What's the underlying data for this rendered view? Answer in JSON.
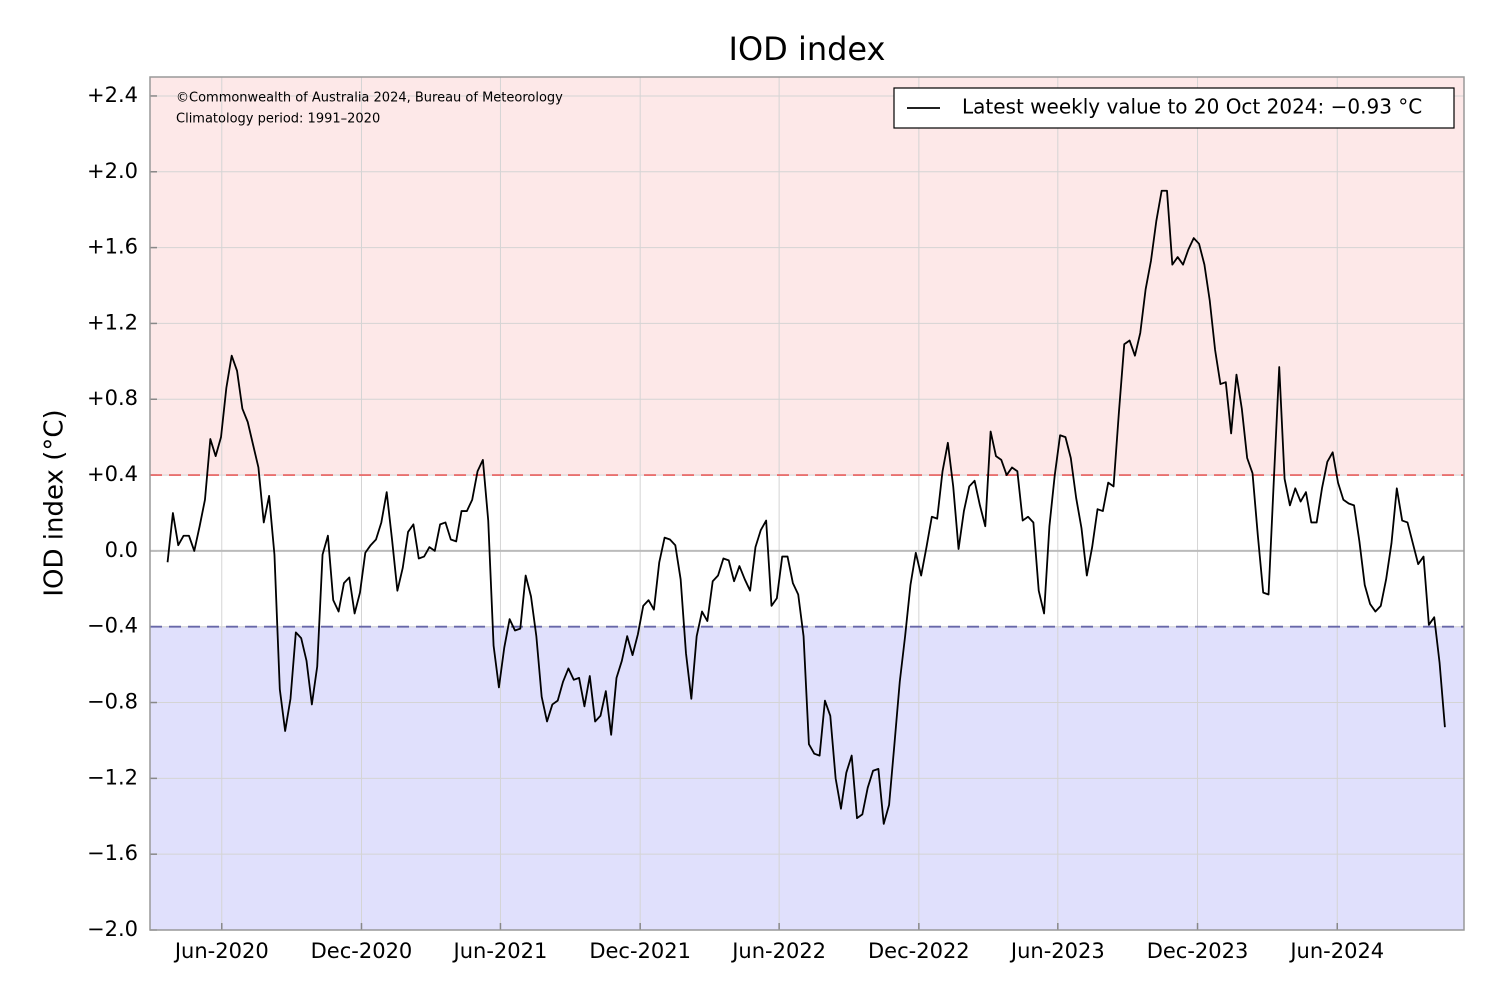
{
  "chart_data": {
    "type": "line",
    "title": "IOD index",
    "y_label": "IOD index (°C)",
    "annotations": [
      "©Commonwealth of Australia 2024, Bureau of Meteorology",
      "Climatology period: 1991–2020"
    ],
    "x": [
      "2020-03-22",
      "2020-03-29",
      "2020-04-05",
      "2020-04-12",
      "2020-04-19",
      "2020-04-26",
      "2020-05-03",
      "2020-05-10",
      "2020-05-17",
      "2020-05-24",
      "2020-05-31",
      "2020-06-07",
      "2020-06-14",
      "2020-06-21",
      "2020-06-28",
      "2020-07-05",
      "2020-07-12",
      "2020-07-19",
      "2020-07-26",
      "2020-08-02",
      "2020-08-09",
      "2020-08-16",
      "2020-08-23",
      "2020-08-30",
      "2020-09-06",
      "2020-09-13",
      "2020-09-20",
      "2020-09-27",
      "2020-10-04",
      "2020-10-11",
      "2020-10-18",
      "2020-10-25",
      "2020-11-01",
      "2020-11-08",
      "2020-11-15",
      "2020-11-22",
      "2020-11-29",
      "2020-12-06",
      "2020-12-13",
      "2020-12-20",
      "2020-12-27",
      "2021-01-03",
      "2021-01-10",
      "2021-01-17",
      "2021-01-24",
      "2021-01-31",
      "2021-02-07",
      "2021-02-14",
      "2021-02-21",
      "2021-02-28",
      "2021-03-07",
      "2021-03-14",
      "2021-03-21",
      "2021-03-28",
      "2021-04-04",
      "2021-04-11",
      "2021-04-18",
      "2021-04-25",
      "2021-05-02",
      "2021-05-09",
      "2021-05-16",
      "2021-05-23",
      "2021-05-30",
      "2021-06-06",
      "2021-06-13",
      "2021-06-20",
      "2021-06-27",
      "2021-07-04",
      "2021-07-11",
      "2021-07-18",
      "2021-07-25",
      "2021-08-01",
      "2021-08-08",
      "2021-08-15",
      "2021-08-22",
      "2021-08-29",
      "2021-09-05",
      "2021-09-12",
      "2021-09-19",
      "2021-09-26",
      "2021-10-03",
      "2021-10-10",
      "2021-10-17",
      "2021-10-24",
      "2021-10-31",
      "2021-11-07",
      "2021-11-14",
      "2021-11-21",
      "2021-11-28",
      "2021-12-05",
      "2021-12-12",
      "2021-12-19",
      "2021-12-26",
      "2022-01-02",
      "2022-01-09",
      "2022-01-16",
      "2022-01-23",
      "2022-01-30",
      "2022-02-06",
      "2022-02-13",
      "2022-02-20",
      "2022-02-27",
      "2022-03-06",
      "2022-03-13",
      "2022-03-20",
      "2022-03-27",
      "2022-04-03",
      "2022-04-10",
      "2022-04-17",
      "2022-04-24",
      "2022-05-01",
      "2022-05-08",
      "2022-05-15",
      "2022-05-22",
      "2022-05-29",
      "2022-06-05",
      "2022-06-12",
      "2022-06-19",
      "2022-06-26",
      "2022-07-03",
      "2022-07-10",
      "2022-07-17",
      "2022-07-24",
      "2022-07-31",
      "2022-08-07",
      "2022-08-14",
      "2022-08-21",
      "2022-08-28",
      "2022-09-04",
      "2022-09-11",
      "2022-09-18",
      "2022-09-25",
      "2022-10-02",
      "2022-10-09",
      "2022-10-16",
      "2022-10-23",
      "2022-10-30",
      "2022-11-06",
      "2022-11-13",
      "2022-11-20",
      "2022-11-27",
      "2022-12-04",
      "2022-12-11",
      "2022-12-18",
      "2022-12-25",
      "2023-01-01",
      "2023-01-08",
      "2023-01-15",
      "2023-01-22",
      "2023-01-29",
      "2023-02-05",
      "2023-02-12",
      "2023-02-19",
      "2023-02-26",
      "2023-03-05",
      "2023-03-12",
      "2023-03-19",
      "2023-03-26",
      "2023-04-02",
      "2023-04-09",
      "2023-04-16",
      "2023-04-23",
      "2023-04-30",
      "2023-05-07",
      "2023-05-14",
      "2023-05-21",
      "2023-05-28",
      "2023-06-04",
      "2023-06-11",
      "2023-06-18",
      "2023-06-25",
      "2023-07-02",
      "2023-07-09",
      "2023-07-16",
      "2023-07-23",
      "2023-07-30",
      "2023-08-06",
      "2023-08-13",
      "2023-08-20",
      "2023-08-27",
      "2023-09-03",
      "2023-09-10",
      "2023-09-17",
      "2023-09-24",
      "2023-10-01",
      "2023-10-08",
      "2023-10-15",
      "2023-10-22",
      "2023-10-29",
      "2023-11-05",
      "2023-11-12",
      "2023-11-19",
      "2023-11-26",
      "2023-12-03",
      "2023-12-10",
      "2023-12-17",
      "2023-12-24",
      "2023-12-31",
      "2024-01-07",
      "2024-01-14",
      "2024-01-21",
      "2024-01-28",
      "2024-02-04",
      "2024-02-11",
      "2024-02-18",
      "2024-02-25",
      "2024-03-03",
      "2024-03-10",
      "2024-03-17",
      "2024-03-24",
      "2024-03-31",
      "2024-04-07",
      "2024-04-14",
      "2024-04-21",
      "2024-04-28",
      "2024-05-05",
      "2024-05-12",
      "2024-05-19",
      "2024-05-26",
      "2024-06-02",
      "2024-06-09",
      "2024-06-16",
      "2024-06-23",
      "2024-06-30",
      "2024-07-07",
      "2024-07-14",
      "2024-07-21",
      "2024-07-28",
      "2024-08-04",
      "2024-08-11",
      "2024-08-18",
      "2024-08-25",
      "2024-09-01",
      "2024-09-08",
      "2024-09-15",
      "2024-09-22",
      "2024-09-29",
      "2024-10-06",
      "2024-10-13",
      "2024-10-20"
    ],
    "series": [
      {
        "name": "Latest weekly value to 20 Oct 2024: −0.93 °C",
        "color": "#000000",
        "values": [
          -0.06,
          0.2,
          0.03,
          0.08,
          0.08,
          0.0,
          0.13,
          0.27,
          0.59,
          0.5,
          0.6,
          0.86,
          1.03,
          0.95,
          0.75,
          0.68,
          0.56,
          0.44,
          0.15,
          0.29,
          -0.02,
          -0.73,
          -0.95,
          -0.78,
          -0.43,
          -0.46,
          -0.58,
          -0.81,
          -0.61,
          -0.02,
          0.08,
          -0.26,
          -0.32,
          -0.17,
          -0.14,
          -0.33,
          -0.22,
          -0.01,
          0.03,
          0.06,
          0.15,
          0.31,
          0.06,
          -0.21,
          -0.09,
          0.1,
          0.14,
          -0.04,
          -0.03,
          0.02,
          0.0,
          0.14,
          0.15,
          0.06,
          0.05,
          0.21,
          0.21,
          0.27,
          0.42,
          0.48,
          0.16,
          -0.5,
          -0.72,
          -0.51,
          -0.36,
          -0.42,
          -0.41,
          -0.13,
          -0.24,
          -0.45,
          -0.77,
          -0.9,
          -0.81,
          -0.79,
          -0.69,
          -0.62,
          -0.68,
          -0.67,
          -0.82,
          -0.66,
          -0.9,
          -0.87,
          -0.74,
          -0.97,
          -0.67,
          -0.58,
          -0.45,
          -0.55,
          -0.44,
          -0.29,
          -0.26,
          -0.31,
          -0.06,
          0.07,
          0.06,
          0.03,
          -0.15,
          -0.54,
          -0.78,
          -0.45,
          -0.32,
          -0.37,
          -0.16,
          -0.13,
          -0.04,
          -0.05,
          -0.16,
          -0.08,
          -0.15,
          -0.21,
          0.02,
          0.11,
          0.16,
          -0.29,
          -0.25,
          -0.03,
          -0.03,
          -0.17,
          -0.23,
          -0.45,
          -1.02,
          -1.07,
          -1.08,
          -0.79,
          -0.87,
          -1.2,
          -1.36,
          -1.17,
          -1.08,
          -1.41,
          -1.39,
          -1.25,
          -1.16,
          -1.15,
          -1.44,
          -1.34,
          -1.02,
          -0.69,
          -0.45,
          -0.18,
          -0.01,
          -0.13,
          0.02,
          0.18,
          0.17,
          0.42,
          0.57,
          0.34,
          0.01,
          0.21,
          0.34,
          0.37,
          0.24,
          0.13,
          0.63,
          0.5,
          0.48,
          0.4,
          0.44,
          0.42,
          0.16,
          0.18,
          0.15,
          -0.21,
          -0.33,
          0.13,
          0.4,
          0.61,
          0.6,
          0.49,
          0.28,
          0.12,
          -0.13,
          0.02,
          0.22,
          0.21,
          0.36,
          0.34,
          0.73,
          1.09,
          1.11,
          1.03,
          1.15,
          1.38,
          1.53,
          1.74,
          1.9,
          1.9,
          1.51,
          1.55,
          1.51,
          1.59,
          1.65,
          1.62,
          1.51,
          1.32,
          1.06,
          0.88,
          0.89,
          0.62,
          0.93,
          0.75,
          0.49,
          0.41,
          0.08,
          -0.22,
          -0.23,
          0.38,
          0.97,
          0.38,
          0.24,
          0.33,
          0.26,
          0.31,
          0.15,
          0.15,
          0.33,
          0.47,
          0.52,
          0.36,
          0.27,
          0.25,
          0.24,
          0.05,
          -0.18,
          -0.28,
          -0.32,
          -0.29,
          -0.15,
          0.04,
          0.33,
          0.16,
          0.15,
          0.04,
          -0.07,
          -0.03,
          -0.39,
          -0.35,
          -0.59,
          -0.93
        ]
      }
    ],
    "xlim": [
      "2020-02-28",
      "2024-11-14"
    ],
    "xticks": [
      {
        "value": "2020-06-01",
        "label": "Jun-2020"
      },
      {
        "value": "2020-12-01",
        "label": "Dec-2020"
      },
      {
        "value": "2021-06-01",
        "label": "Jun-2021"
      },
      {
        "value": "2021-12-01",
        "label": "Dec-2021"
      },
      {
        "value": "2022-06-01",
        "label": "Jun-2022"
      },
      {
        "value": "2022-12-01",
        "label": "Dec-2022"
      },
      {
        "value": "2023-06-01",
        "label": "Jun-2023"
      },
      {
        "value": "2023-12-01",
        "label": "Dec-2023"
      },
      {
        "value": "2024-06-01",
        "label": "Jun-2024"
      }
    ],
    "ylim": [
      -2.0,
      2.5
    ],
    "yticks": [
      {
        "value": -2.0,
        "label": "−2.0"
      },
      {
        "value": -1.6,
        "label": "−1.6"
      },
      {
        "value": -1.2,
        "label": "−1.2"
      },
      {
        "value": -0.8,
        "label": "−0.8"
      },
      {
        "value": -0.4,
        "label": "−0.4"
      },
      {
        "value": 0,
        "label": "0.0"
      },
      {
        "value": 0.4,
        "label": "+0.4"
      },
      {
        "value": 0.8,
        "label": "+0.8"
      },
      {
        "value": 1.2,
        "label": "+1.2"
      },
      {
        "value": 1.6,
        "label": "+1.6"
      },
      {
        "value": 2.0,
        "label": "+2.0"
      },
      {
        "value": 2.4,
        "label": "+2.4"
      }
    ],
    "grid": true,
    "zero_line": true,
    "thresholds": [
      {
        "value": 0.4,
        "line_color": "#e8706f",
        "fill_color": "#fde8e8",
        "fill": "above"
      },
      {
        "value": -0.4,
        "line_color": "#6868a8",
        "fill_color": "#e0e0fc",
        "fill": "below"
      }
    ],
    "legend": "upper right"
  }
}
